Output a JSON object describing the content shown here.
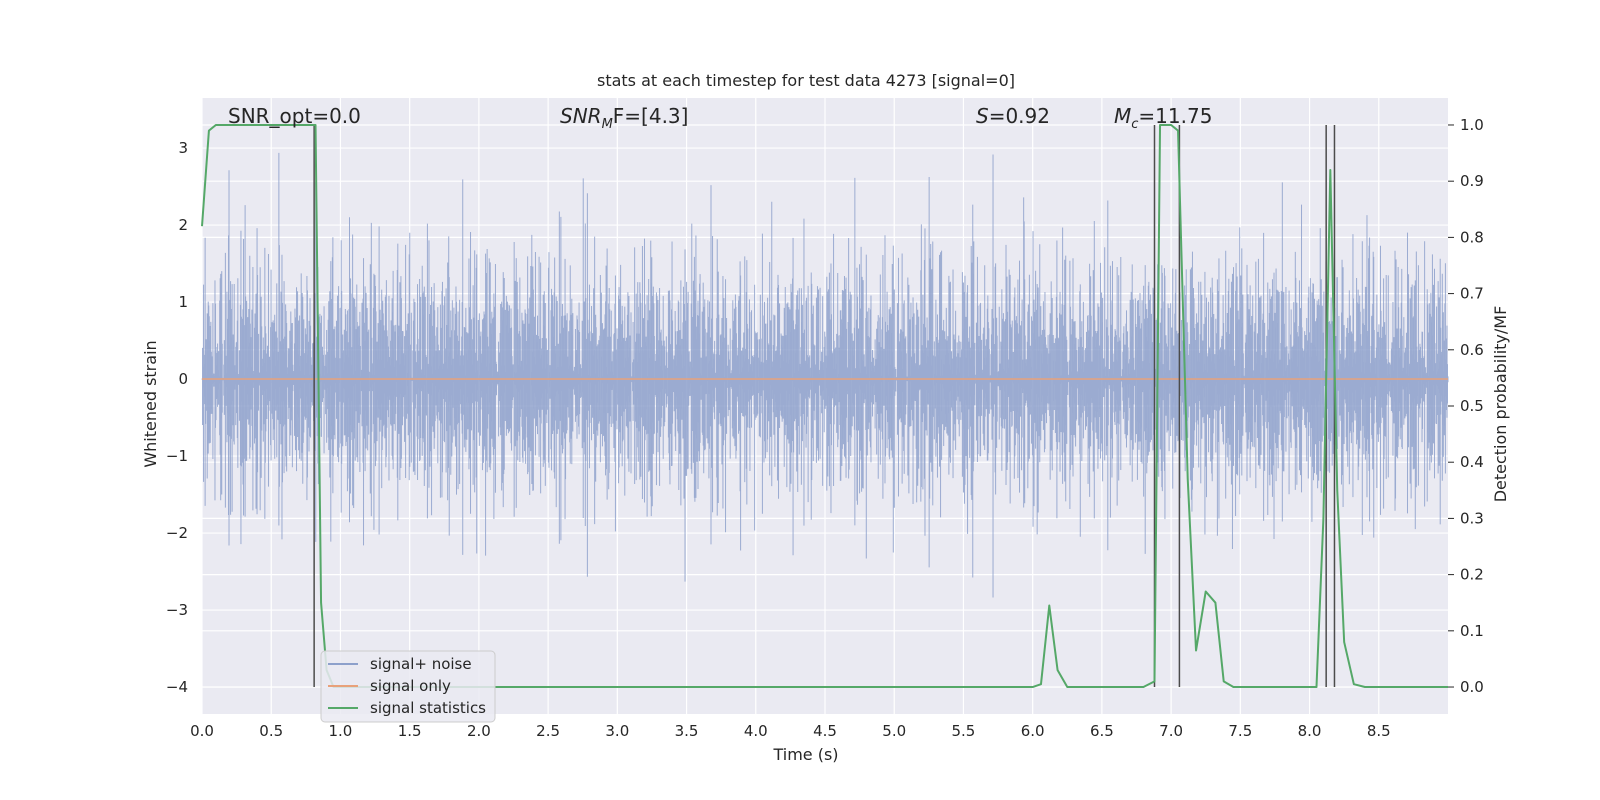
{
  "chart_data": {
    "type": "line",
    "title": "stats at each timestep for test data 4273 [signal=0]",
    "xlabel": "Time (s)",
    "ylabel_left": "Whitened strain",
    "ylabel_right": "Detection probability/MF",
    "xlim": [
      0.0,
      9.0
    ],
    "ylim_left": [
      -4.35,
      3.65
    ],
    "ylim_right": [
      -0.048,
      1.048
    ],
    "x_ticks": [
      "0.0",
      "0.5",
      "1.0",
      "1.5",
      "2.0",
      "2.5",
      "3.0",
      "3.5",
      "4.0",
      "4.5",
      "5.0",
      "5.5",
      "6.0",
      "6.5",
      "7.0",
      "7.5",
      "8.0",
      "8.5"
    ],
    "x_tick_values": [
      0.0,
      0.5,
      1.0,
      1.5,
      2.0,
      2.5,
      3.0,
      3.5,
      4.0,
      4.5,
      5.0,
      5.5,
      6.0,
      6.5,
      7.0,
      7.5,
      8.0,
      8.5
    ],
    "y_left_ticks": [
      "3",
      "2",
      "1",
      "0",
      "−1",
      "−2",
      "−3",
      "−4"
    ],
    "y_left_tick_values": [
      3,
      2,
      1,
      0,
      -1,
      -2,
      -3,
      -4
    ],
    "y_right_ticks": [
      "1.0",
      "0.9",
      "0.8",
      "0.7",
      "0.6",
      "0.5",
      "0.4",
      "0.3",
      "0.2",
      "0.1",
      "0.0"
    ],
    "y_right_tick_values": [
      1.0,
      0.9,
      0.8,
      0.7,
      0.6,
      0.5,
      0.4,
      0.3,
      0.2,
      0.1,
      0.0
    ],
    "grid": true,
    "legend_position": "lower-left",
    "annotations": {
      "snr_opt": "SNR_opt=0.0",
      "snr_mf_name": "SNR",
      "snr_mf_sub": "M",
      "snr_mf_rest": "F=[4.3]",
      "s_name": "S",
      "s_rest": "=0.92",
      "mc_name": "M",
      "mc_sub": "c",
      "mc_rest": "=11.75"
    },
    "series": [
      {
        "name": "signal+ noise",
        "color": "#8da0cb",
        "description_range": [
          -4.0,
          3.2
        ],
        "note": "dense noise trace spanning roughly -2 to 2 with excursions"
      },
      {
        "name": "signal only",
        "color": "#e8a17a",
        "x": [
          0.0,
          9.0
        ],
        "y": [
          0.0,
          0.0
        ]
      },
      {
        "name": "signal statistics",
        "color": "#55a868",
        "axis": "right",
        "x": [
          0.0,
          0.05,
          0.1,
          0.15,
          0.8,
          0.82,
          0.86,
          0.9,
          0.95,
          1.0,
          5.2,
          5.3,
          6.0,
          6.06,
          6.12,
          6.18,
          6.25,
          6.8,
          6.88,
          6.92,
          6.96,
          7.0,
          7.05,
          7.12,
          7.18,
          7.25,
          7.32,
          7.38,
          7.45,
          8.05,
          8.1,
          8.15,
          8.2,
          8.25,
          8.32,
          8.4,
          9.0
        ],
        "y": [
          0.82,
          0.99,
          1.0,
          1.0,
          1.0,
          1.0,
          0.15,
          0.03,
          0.0,
          0.0,
          0.0,
          0.0,
          0.0,
          0.005,
          0.145,
          0.03,
          0.0,
          0.0,
          0.01,
          1.0,
          1.0,
          1.0,
          0.99,
          0.37,
          0.065,
          0.17,
          0.15,
          0.01,
          0.0,
          0.0,
          0.3,
          0.92,
          0.35,
          0.08,
          0.005,
          0.0,
          0.0
        ]
      }
    ],
    "vertical_markers_x": [
      0.81,
      6.88,
      7.06,
      8.12,
      8.18
    ]
  }
}
